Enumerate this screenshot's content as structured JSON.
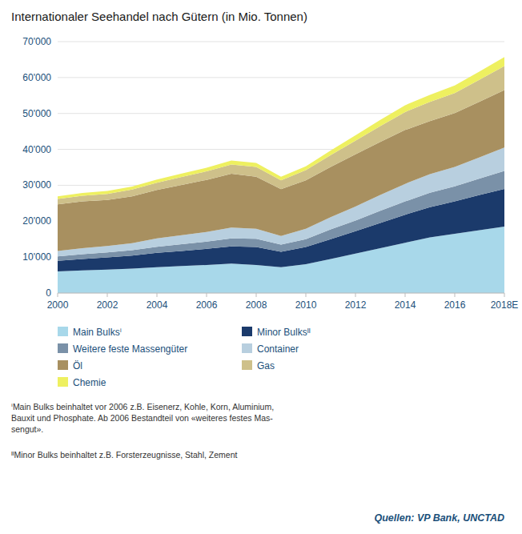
{
  "chart_data": {
    "type": "area",
    "stacked": true,
    "title": "Internationaler Seehandel nach Gütern (in Mio. Tonnen)",
    "x": [
      2000,
      2001,
      2002,
      2003,
      2004,
      2005,
      2006,
      2007,
      2008,
      2009,
      2010,
      2011,
      2012,
      2013,
      2014,
      2015,
      2016,
      2017,
      2018
    ],
    "xlim": [
      2000,
      2018
    ],
    "xticks": [
      2000,
      2002,
      2004,
      2006,
      2008,
      2010,
      2012,
      2014,
      2016,
      {
        "value": 2018,
        "label": "2018E"
      }
    ],
    "ylim": [
      0,
      70000
    ],
    "yticks": [
      0,
      {
        "value": 10000,
        "label": "10'000"
      },
      {
        "value": 20000,
        "label": "20'000"
      },
      {
        "value": 30000,
        "label": "30'000"
      },
      {
        "value": 40000,
        "label": "40'000"
      },
      {
        "value": 50000,
        "label": "50'000"
      },
      {
        "value": 60000,
        "label": "60'000"
      },
      {
        "value": 70000,
        "label": "70'000"
      }
    ],
    "grid": true,
    "legend": "bottom",
    "series": [
      {
        "name": "Main Bulksⁱ",
        "color": "#a8d8ea",
        "values": [
          6000,
          6300,
          6500,
          6800,
          7200,
          7500,
          7800,
          8200,
          7800,
          7200,
          8000,
          9500,
          11000,
          12500,
          14000,
          15500,
          16500,
          17500,
          18500
        ]
      },
      {
        "name": "Minor Bulksᴵᴵ",
        "color": "#1b3a6b",
        "values": [
          3000,
          3200,
          3400,
          3600,
          4000,
          4200,
          4500,
          4800,
          5000,
          4300,
          4800,
          5500,
          6200,
          7000,
          7800,
          8400,
          9000,
          9800,
          10500
        ]
      },
      {
        "name": "Weitere feste Massengüter",
        "color": "#7a91a8",
        "values": [
          1200,
          1300,
          1400,
          1500,
          1700,
          1900,
          2000,
          2200,
          2300,
          2000,
          2200,
          2700,
          3000,
          3400,
          3700,
          4000,
          4200,
          4600,
          5000
        ]
      },
      {
        "name": "Container",
        "color": "#b8cfdf",
        "values": [
          1500,
          1700,
          1800,
          2000,
          2300,
          2500,
          2700,
          3000,
          2800,
          2400,
          2900,
          3400,
          3900,
          4400,
          4900,
          5200,
          5400,
          5900,
          6500
        ]
      },
      {
        "name": "Öl",
        "color": "#a89060",
        "values": [
          13000,
          13000,
          12800,
          13000,
          13500,
          14000,
          14500,
          15000,
          14500,
          13000,
          13500,
          14000,
          14500,
          14800,
          15000,
          14800,
          15000,
          15500,
          16000
        ]
      },
      {
        "name": "Gas",
        "color": "#cec08a",
        "values": [
          1500,
          1600,
          1700,
          1900,
          2000,
          2200,
          2400,
          2600,
          2700,
          2500,
          2800,
          3300,
          3800,
          4400,
          5000,
          5300,
          5600,
          6100,
          6700
        ]
      },
      {
        "name": "Chemie",
        "color": "#eef060",
        "values": [
          700,
          750,
          800,
          850,
          900,
          950,
          1000,
          1100,
          1100,
          1000,
          1100,
          1300,
          1500,
          1700,
          1900,
          2000,
          2100,
          2300,
          2500
        ]
      }
    ],
    "footnotes": [
      "ⁱMain Bulks beinhaltet vor 2006 z.B. Eisenerz, Kohle, Korn, Aluminium,\nBauxit und Phosphate. Ab 2006 Bestandteil von «weiteres festes Mas-\nsengut».",
      "ᴵᴵMinor Bulks beinhaltet z.B. Forsterzeugnisse, Stahl, Zement"
    ],
    "source": "Quellen: VP Bank, UNCTAD"
  }
}
